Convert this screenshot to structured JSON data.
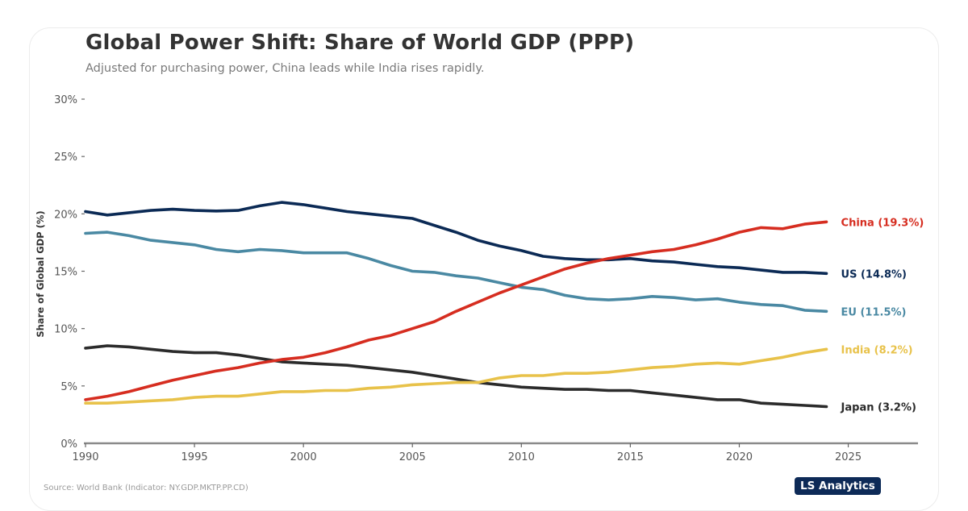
{
  "header": {
    "title": "Global Power Shift: Share of World GDP (PPP)",
    "subtitle": "Adjusted for purchasing power, China leads while India rises rapidly."
  },
  "footer": {
    "source": "Source: World Bank (Indicator: NY.GDP.MKTP.PP.CD)",
    "brand": "LS Analytics",
    "brand_color": "#0d2a57"
  },
  "chart_data": {
    "type": "line",
    "title": "Global Power Shift: Share of World GDP (PPP)",
    "subtitle": "Adjusted for purchasing power, China leads while India rises rapidly.",
    "xlabel": "",
    "ylabel": "Share of Global GDP (%)",
    "xlim": [
      1990,
      2028.2
    ],
    "ylim": [
      0,
      30
    ],
    "x_ticks": [
      1990,
      1995,
      2000,
      2005,
      2010,
      2015,
      2020,
      2025
    ],
    "y_ticks": [
      0,
      5,
      10,
      15,
      20,
      25,
      30
    ],
    "y_tick_labels": [
      "0%",
      "5%",
      "10%",
      "15%",
      "20%",
      "25%",
      "30%"
    ],
    "grid": false,
    "legend": "direct-labels-right",
    "x": [
      1990,
      1991,
      1992,
      1993,
      1994,
      1995,
      1996,
      1997,
      1998,
      1999,
      2000,
      2001,
      2002,
      2003,
      2004,
      2005,
      2006,
      2007,
      2008,
      2009,
      2010,
      2011,
      2012,
      2013,
      2014,
      2015,
      2016,
      2017,
      2018,
      2019,
      2020,
      2021,
      2022,
      2023,
      2024
    ],
    "series": [
      {
        "name": "China",
        "label": "China (19.3%)",
        "color": "#d62d20",
        "values": [
          3.8,
          4.1,
          4.5,
          5.0,
          5.5,
          5.9,
          6.3,
          6.6,
          7.0,
          7.3,
          7.5,
          7.9,
          8.4,
          9.0,
          9.4,
          10.0,
          10.6,
          11.5,
          12.3,
          13.1,
          13.8,
          14.5,
          15.2,
          15.7,
          16.1,
          16.4,
          16.7,
          16.9,
          17.3,
          17.8,
          18.4,
          18.8,
          18.7,
          19.1,
          19.3
        ]
      },
      {
        "name": "US",
        "label": "US (14.8%)",
        "color": "#0b2a55",
        "values": [
          20.2,
          19.9,
          20.1,
          20.3,
          20.4,
          20.3,
          20.25,
          20.3,
          20.7,
          21.0,
          20.8,
          20.5,
          20.2,
          20.0,
          19.8,
          19.6,
          19.0,
          18.4,
          17.7,
          17.2,
          16.8,
          16.3,
          16.1,
          16.0,
          16.0,
          16.1,
          15.9,
          15.8,
          15.6,
          15.4,
          15.3,
          15.1,
          14.9,
          14.9,
          14.8
        ]
      },
      {
        "name": "EU",
        "label": "EU (11.5%)",
        "color": "#4a89a3",
        "values": [
          18.3,
          18.4,
          18.1,
          17.7,
          17.5,
          17.3,
          16.9,
          16.7,
          16.9,
          16.8,
          16.6,
          16.6,
          16.6,
          16.1,
          15.5,
          15.0,
          14.9,
          14.6,
          14.4,
          14.0,
          13.6,
          13.4,
          12.9,
          12.6,
          12.5,
          12.6,
          12.8,
          12.7,
          12.5,
          12.6,
          12.3,
          12.1,
          12.0,
          11.6,
          11.5
        ]
      },
      {
        "name": "India",
        "label": "India (8.2%)",
        "color": "#e8c24a",
        "values": [
          3.5,
          3.5,
          3.6,
          3.7,
          3.8,
          4.0,
          4.1,
          4.1,
          4.3,
          4.5,
          4.5,
          4.6,
          4.6,
          4.8,
          4.9,
          5.1,
          5.2,
          5.3,
          5.3,
          5.7,
          5.9,
          5.9,
          6.1,
          6.1,
          6.2,
          6.4,
          6.6,
          6.7,
          6.9,
          7.0,
          6.9,
          7.2,
          7.5,
          7.9,
          8.2
        ]
      },
      {
        "name": "Japan",
        "label": "Japan (3.2%)",
        "color": "#2b2b2b",
        "values": [
          8.3,
          8.5,
          8.4,
          8.2,
          8.0,
          7.9,
          7.9,
          7.7,
          7.4,
          7.1,
          7.0,
          6.9,
          6.8,
          6.6,
          6.4,
          6.2,
          5.9,
          5.6,
          5.3,
          5.1,
          4.9,
          4.8,
          4.7,
          4.7,
          4.6,
          4.6,
          4.4,
          4.2,
          4.0,
          3.8,
          3.8,
          3.5,
          3.4,
          3.3,
          3.2
        ]
      }
    ]
  }
}
